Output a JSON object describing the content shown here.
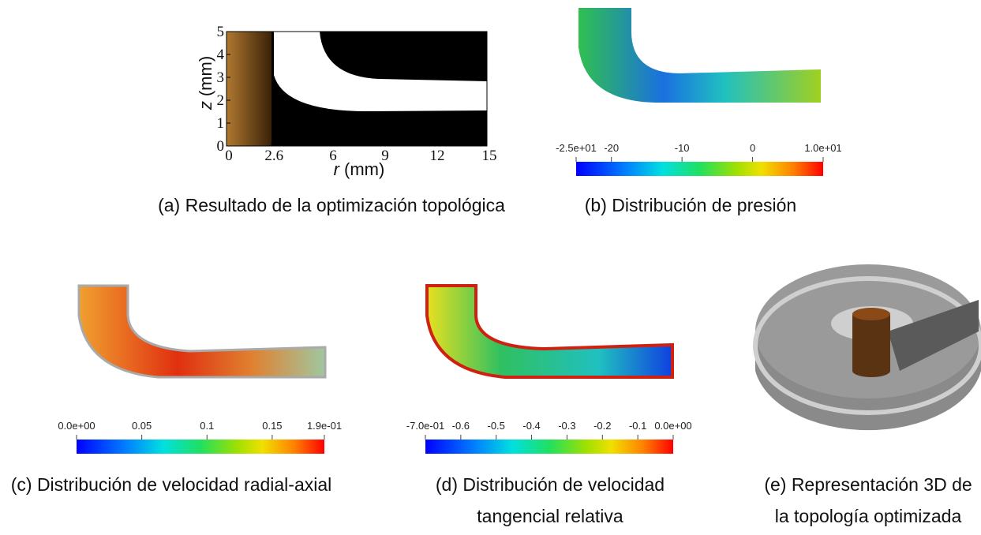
{
  "panels": [
    {
      "caption": [
        "(a) Resultado de la optimización topológica"
      ],
      "x_axis": {
        "symbol": "r",
        "unit": "(mm)",
        "range": [
          0,
          15
        ],
        "ticks": [
          0,
          2.6,
          6,
          9,
          12,
          15
        ]
      },
      "y_axis": {
        "symbol": "z",
        "unit": "(mm)",
        "range": [
          0,
          5
        ],
        "ticks": [
          0,
          1,
          2,
          3,
          4,
          5
        ]
      }
    },
    {
      "caption": [
        "(b) Distribución de presión"
      ],
      "colorbar": {
        "range": [
          -25,
          10
        ],
        "ticks": [
          {
            "value": -25,
            "label": "-2.5e+01"
          },
          -20,
          -10,
          0,
          {
            "value": 10,
            "label": "1.0e+01"
          }
        ]
      }
    },
    {
      "caption": [
        "(c) Distribución de velocidad radial-axial"
      ],
      "colorbar": {
        "range": [
          0,
          0.19
        ],
        "ticks": [
          {
            "value": 0,
            "label": "0.0e+00"
          },
          0.05,
          0.1,
          0.15,
          {
            "value": 0.19,
            "label": "1.9e-01"
          }
        ]
      }
    },
    {
      "caption": [
        "(d) Distribución de velocidad",
        "tangencial relativa"
      ],
      "colorbar": {
        "range": [
          -0.7,
          0
        ],
        "ticks": [
          {
            "value": -0.7,
            "label": "-7.0e-01"
          },
          -0.6,
          -0.5,
          -0.4,
          -0.3,
          -0.2,
          -0.1,
          {
            "value": 0,
            "label": "0.0e+00"
          }
        ]
      }
    },
    {
      "caption": [
        "(e) Representación 3D de",
        "la topología optimizada"
      ]
    }
  ]
}
